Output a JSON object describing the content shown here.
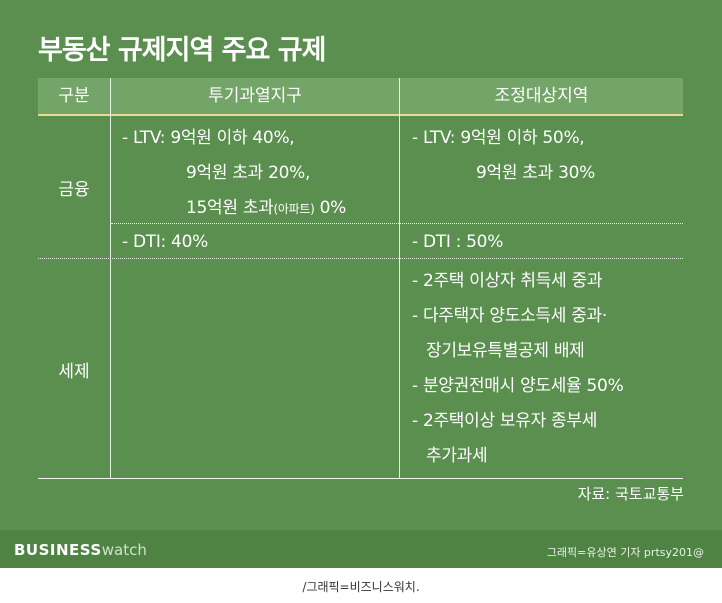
{
  "title": "부동산 규제지역 주요 규제",
  "table": {
    "headers": [
      "구분",
      "투기과열지구",
      "조정대상지역"
    ],
    "rows": {
      "finance_label": "금융",
      "ltv_speculative": [
        "- LTV: 9억원 이하 40%,",
        "9억원 초과 20%,",
        "15억원 초과",
        "(아파트)",
        " 0%"
      ],
      "ltv_adjustment": [
        "- LTV: 9억원 이하 50%,",
        "9억원 초과 30%"
      ],
      "dti_speculative": "- DTI: 40%",
      "dti_adjustment": "- DTI : 50%",
      "tax_label": "세제",
      "tax_adjustment": [
        "- 2주택 이상자 취득세 중과",
        "- 다주택자 양도소득세 중과·",
        "장기보유특별공제 배제",
        "- 분양권전매시 양도세율 50%",
        "- 2주택이상 보유자 종부세",
        "추가과세"
      ]
    }
  },
  "source": "자료: 국토교통부",
  "brand": {
    "bold": "BUSINESS",
    "light": "watch"
  },
  "credit": "그래픽=유상연 기자 prtsy201@",
  "caption": "/그래픽=비즈니스워치."
}
